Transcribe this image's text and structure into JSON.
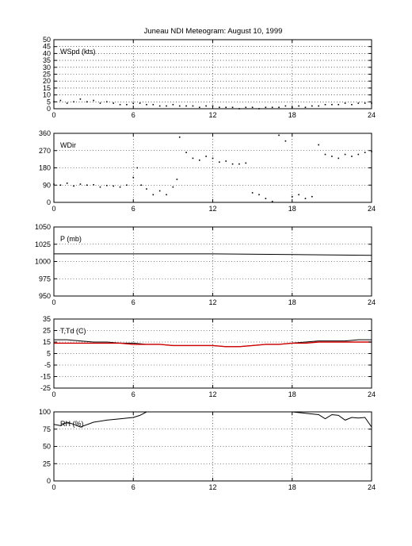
{
  "figure": {
    "title": "Juneau NDI Meteogram:     August 10, 1999"
  },
  "chart_data": [
    {
      "type": "line",
      "label": "WSpd (kts)",
      "x_ticks": [
        "0",
        "6",
        "12",
        "18",
        "24"
      ],
      "xlim": [
        0,
        24
      ],
      "ylim": [
        0,
        50
      ],
      "y_ticks": [
        "0",
        "5",
        "10",
        "15",
        "20",
        "25",
        "30",
        "35",
        "40",
        "45",
        "50"
      ],
      "grid": true,
      "style": "dots",
      "series": [
        {
          "color": "#000000",
          "x": [
            0,
            0.5,
            1,
            1.5,
            2,
            2.5,
            3,
            3.5,
            4,
            4.5,
            5,
            5.5,
            6,
            6.5,
            7,
            7.5,
            8,
            8.5,
            9,
            9.5,
            10,
            10.5,
            11,
            11.5,
            12,
            12.5,
            13,
            13.5,
            14,
            14.5,
            15,
            15.5,
            16,
            16.5,
            17,
            17.5,
            18,
            18.5,
            19,
            19.5,
            20,
            20.5,
            21,
            21.5,
            22,
            22.5,
            23,
            23.5,
            24
          ],
          "y": [
            5,
            6,
            4,
            5,
            7,
            5,
            6,
            4,
            5,
            4,
            3,
            3,
            4,
            4,
            3,
            3,
            2,
            2,
            3,
            2,
            2,
            2,
            1,
            2,
            2,
            1,
            1,
            1,
            0,
            1,
            1,
            0,
            1,
            1,
            1,
            2,
            1,
            2,
            1,
            2,
            2,
            3,
            3,
            3,
            4,
            3,
            4,
            4,
            4
          ]
        }
      ]
    },
    {
      "type": "scatter",
      "label": "WDir",
      "x_ticks": [
        "0",
        "6",
        "12",
        "18",
        "24"
      ],
      "xlim": [
        0,
        24
      ],
      "ylim": [
        0,
        360
      ],
      "y_ticks": [
        "0",
        "90",
        "180",
        "270",
        "360"
      ],
      "grid": true,
      "series": [
        {
          "color": "#000000",
          "x": [
            0,
            0.5,
            1,
            1.5,
            2,
            2.5,
            3,
            3.5,
            4,
            4.5,
            5,
            5.5,
            6,
            6.3,
            6.6,
            7,
            7.5,
            8,
            8.5,
            9,
            9.3,
            9.5,
            10,
            10.5,
            11,
            11.5,
            12,
            12.5,
            13,
            13.5,
            14,
            14.5,
            15,
            15.5,
            16,
            16.5,
            17,
            17.5,
            18,
            18.5,
            19,
            19.5,
            20,
            20.5,
            21,
            21.5,
            22,
            22.5,
            23,
            23.5,
            24
          ],
          "y": [
            95,
            90,
            100,
            85,
            95,
            90,
            92,
            80,
            88,
            85,
            80,
            90,
            130,
            180,
            90,
            70,
            40,
            60,
            40,
            80,
            120,
            340,
            260,
            230,
            220,
            240,
            230,
            210,
            215,
            200,
            200,
            205,
            50,
            40,
            20,
            5,
            350,
            320,
            30,
            40,
            20,
            30,
            300,
            250,
            240,
            230,
            250,
            240,
            250,
            260,
            265
          ]
        }
      ]
    },
    {
      "type": "line",
      "label": "P (mb)",
      "x_ticks": [
        "0",
        "6",
        "12",
        "18",
        "24"
      ],
      "xlim": [
        0,
        24
      ],
      "ylim": [
        950,
        1050
      ],
      "y_ticks": [
        "950",
        "975",
        "1000",
        "1025",
        "1050"
      ],
      "grid": true,
      "series": [
        {
          "color": "#000000",
          "x": [
            0,
            6,
            12,
            18,
            24
          ],
          "y": [
            1011,
            1011,
            1011,
            1010,
            1009
          ]
        }
      ]
    },
    {
      "type": "line",
      "label": "T,Td (C)",
      "x_ticks": [
        "0",
        "6",
        "12",
        "18",
        "24"
      ],
      "xlim": [
        0,
        24
      ],
      "ylim": [
        -25,
        35
      ],
      "y_ticks": [
        "-25",
        "-15",
        "-5",
        "5",
        "15",
        "25",
        "35"
      ],
      "grid": true,
      "series": [
        {
          "color": "#000000",
          "x": [
            0,
            1,
            2,
            3,
            4,
            5,
            6,
            7,
            8,
            9,
            10,
            11,
            12,
            13,
            14,
            15,
            16,
            17,
            18,
            19,
            20,
            21,
            22,
            23,
            24
          ],
          "y": [
            17,
            17,
            16,
            15,
            15,
            14,
            14,
            13,
            13,
            12,
            12,
            12,
            12,
            11,
            11,
            12,
            13,
            13,
            14,
            15,
            16,
            16,
            16,
            17,
            17
          ]
        },
        {
          "color": "#d40000",
          "x": [
            0,
            1,
            2,
            3,
            4,
            5,
            6,
            7,
            8,
            9,
            10,
            11,
            12,
            13,
            14,
            15,
            16,
            17,
            18,
            19,
            20,
            21,
            22,
            23,
            24
          ],
          "y": [
            14,
            14,
            14,
            14,
            14,
            14,
            13,
            13,
            13,
            12,
            12,
            12,
            12,
            11,
            11,
            12,
            13,
            13,
            14,
            14,
            15,
            15,
            15,
            15,
            15
          ]
        }
      ]
    },
    {
      "type": "line",
      "label": "RH (%)",
      "x_ticks": [
        "0",
        "6",
        "12",
        "18",
        "24"
      ],
      "xlim": [
        0,
        24
      ],
      "ylim": [
        0,
        100
      ],
      "y_ticks": [
        "0",
        "25",
        "50",
        "75",
        "100"
      ],
      "grid": true,
      "series": [
        {
          "color": "#000000",
          "x": [
            0,
            0.5,
            1,
            1.5,
            2,
            3,
            4,
            5,
            6,
            6.5,
            7
          ],
          "y": [
            82,
            80,
            85,
            82,
            78,
            85,
            88,
            90,
            92,
            95,
            100
          ]
        },
        {
          "color": "#000000",
          "x": [
            18,
            18.5,
            19,
            19.5,
            20,
            20.5,
            21,
            21.5,
            22,
            22.5,
            23,
            23.5,
            24
          ],
          "y": [
            100,
            99,
            98,
            97,
            96,
            90,
            96,
            95,
            88,
            92,
            91,
            92,
            78
          ]
        }
      ]
    }
  ]
}
